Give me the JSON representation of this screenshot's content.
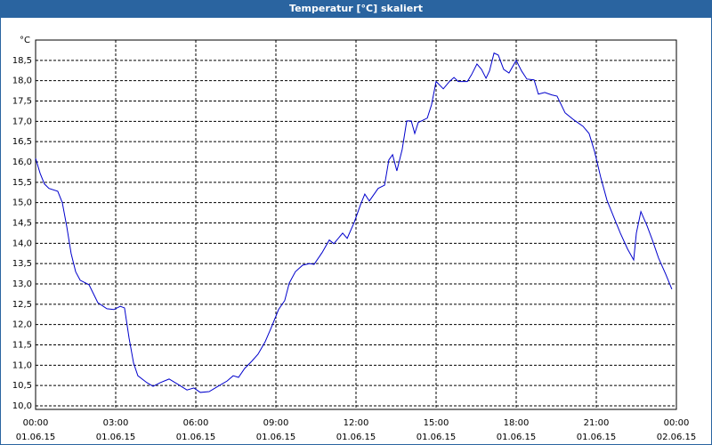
{
  "chart_data": {
    "type": "line",
    "title": "Temperatur [°C] skaliert",
    "ylabel": "°C",
    "x": [
      0,
      0.17,
      0.33,
      0.5,
      0.83,
      1.0,
      1.17,
      1.33,
      1.5,
      1.67,
      2.0,
      2.33,
      2.67,
      2.93,
      3.17,
      3.33,
      3.5,
      3.67,
      3.83,
      4.17,
      4.4,
      4.67,
      5.0,
      5.33,
      5.67,
      5.93,
      6.17,
      6.5,
      6.83,
      7.17,
      7.4,
      7.6,
      7.83,
      8.1,
      8.33,
      8.6,
      8.83,
      9.1,
      9.33,
      9.5,
      9.73,
      10.0,
      10.27,
      10.43,
      10.73,
      11.0,
      11.17,
      11.5,
      11.67,
      11.93,
      12.17,
      12.33,
      12.5,
      12.83,
      13.07,
      13.23,
      13.37,
      13.53,
      13.73,
      13.9,
      14.07,
      14.2,
      14.33,
      14.67,
      14.83,
      15.0,
      15.27,
      15.5,
      15.67,
      15.83,
      16.17,
      16.33,
      16.53,
      16.7,
      16.87,
      17.0,
      17.17,
      17.33,
      17.53,
      17.73,
      18.0,
      18.2,
      18.4,
      18.67,
      18.83,
      19.07,
      19.33,
      19.53,
      19.83,
      20.17,
      20.5,
      20.73,
      20.93,
      21.17,
      21.4,
      21.67,
      21.9,
      22.17,
      22.4,
      22.5,
      22.67,
      22.9,
      23.1,
      23.33,
      23.6,
      23.83
    ],
    "series": [
      {
        "name": "Temperatur",
        "color": "#0000cc",
        "values": [
          16.09,
          15.72,
          15.46,
          15.35,
          15.28,
          15.0,
          14.4,
          13.75,
          13.3,
          13.09,
          12.98,
          12.54,
          12.39,
          12.37,
          12.45,
          12.41,
          11.67,
          11.05,
          10.74,
          10.57,
          10.48,
          10.57,
          10.66,
          10.53,
          10.39,
          10.44,
          10.33,
          10.35,
          10.48,
          10.61,
          10.74,
          10.7,
          10.92,
          11.1,
          11.27,
          11.58,
          11.93,
          12.37,
          12.59,
          13.02,
          13.3,
          13.46,
          13.5,
          13.48,
          13.77,
          14.08,
          13.99,
          14.25,
          14.12,
          14.51,
          14.95,
          15.21,
          15.04,
          15.35,
          15.43,
          16.05,
          16.18,
          15.78,
          16.31,
          17.01,
          17.01,
          16.7,
          16.97,
          17.08,
          17.41,
          17.98,
          17.8,
          17.98,
          18.08,
          17.98,
          17.98,
          18.15,
          18.41,
          18.28,
          18.06,
          18.24,
          18.68,
          18.63,
          18.28,
          18.19,
          18.5,
          18.24,
          18.04,
          18.02,
          17.67,
          17.71,
          17.65,
          17.62,
          17.21,
          17.03,
          16.88,
          16.7,
          16.27,
          15.61,
          15.06,
          14.62,
          14.25,
          13.86,
          13.59,
          14.25,
          14.78,
          14.43,
          14.08,
          13.64,
          13.24,
          12.87
        ]
      }
    ],
    "xlim": [
      0,
      24
    ],
    "xticks": [
      {
        "value": 0,
        "label": "00:00",
        "sublabel": "01.06.15"
      },
      {
        "value": 3,
        "label": "03:00",
        "sublabel": "01.06.15"
      },
      {
        "value": 6,
        "label": "06:00",
        "sublabel": "01.06.15"
      },
      {
        "value": 9,
        "label": "09:00",
        "sublabel": "01.06.15"
      },
      {
        "value": 12,
        "label": "12:00",
        "sublabel": "01.06.15"
      },
      {
        "value": 15,
        "label": "15:00",
        "sublabel": "01.06.15"
      },
      {
        "value": 18,
        "label": "18:00",
        "sublabel": "01.06.15"
      },
      {
        "value": 21,
        "label": "21:00",
        "sublabel": "01.06.15"
      },
      {
        "value": 24,
        "label": "00:00",
        "sublabel": "02.06.15"
      }
    ],
    "ylim": [
      10,
      19
    ],
    "yticks": [
      {
        "value": 10,
        "label": "10,0"
      },
      {
        "value": 10.5,
        "label": "10,5"
      },
      {
        "value": 11,
        "label": "11,0"
      },
      {
        "value": 11.5,
        "label": "11,5"
      },
      {
        "value": 12,
        "label": "12,0"
      },
      {
        "value": 12.5,
        "label": "12,5"
      },
      {
        "value": 13,
        "label": "13,0"
      },
      {
        "value": 13.5,
        "label": "13,5"
      },
      {
        "value": 14,
        "label": "14,0"
      },
      {
        "value": 14.5,
        "label": "14,5"
      },
      {
        "value": 15,
        "label": "15,0"
      },
      {
        "value": 15.5,
        "label": "15,5"
      },
      {
        "value": 16,
        "label": "16,0"
      },
      {
        "value": 16.5,
        "label": "16,5"
      },
      {
        "value": 17,
        "label": "17,0"
      },
      {
        "value": 17.5,
        "label": "17,5"
      },
      {
        "value": 18,
        "label": "18,0"
      },
      {
        "value": 18.5,
        "label": "18,5"
      }
    ],
    "grid": true
  }
}
